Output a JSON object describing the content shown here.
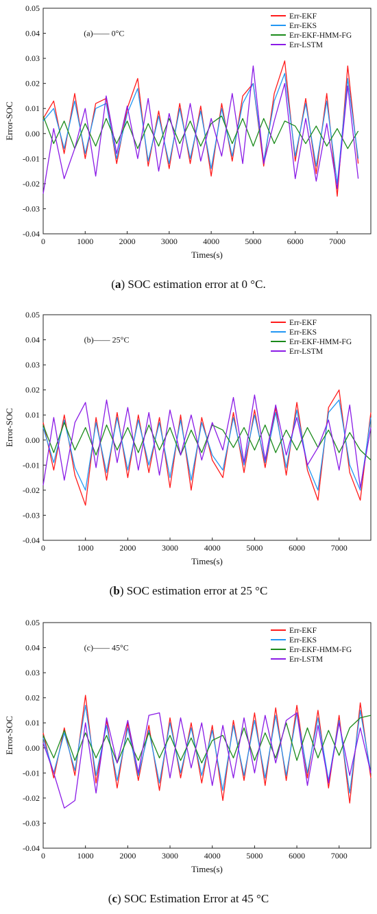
{
  "colors": {
    "Err-EKF": "#ff1a1a",
    "Err-EKS": "#2196f3",
    "Err-EKF-HMM-FG": "#1a8a1a",
    "Err-LSTM": "#8a1ae6"
  },
  "panels": [
    {
      "caption_letter": "a",
      "caption_rest": ") SOC estimation error at 0 °C.",
      "caption_open": "("
    },
    {
      "caption_letter": "b",
      "caption_rest": ") SOC estimation error at 25 °C",
      "caption_open": "("
    },
    {
      "caption_letter": "c",
      "caption_rest": ") SOC Estimation Error at 45 °C",
      "caption_open": "("
    }
  ],
  "chart_data": [
    {
      "type": "line",
      "annotation": "(a)—— 0°C",
      "xlabel": "Times(s)",
      "ylabel": "Error-SOC",
      "xlim": [
        0,
        7800
      ],
      "ylim": [
        -0.04,
        0.05
      ],
      "xticks": [
        0,
        1000,
        2000,
        3000,
        4000,
        5000,
        6000,
        7000
      ],
      "yticks": [
        "-0.04",
        "-0.03",
        "-0.02",
        "-0.01",
        "0.00",
        "0.01",
        "0.02",
        "0.03",
        "0.04",
        "0.05"
      ],
      "legend": "top-right",
      "series": [
        {
          "name": "Err-EKF",
          "x": [
            0,
            250,
            500,
            750,
            1000,
            1250,
            1500,
            1750,
            2000,
            2250,
            2500,
            2750,
            3000,
            3250,
            3500,
            3750,
            4000,
            4250,
            4500,
            4750,
            5000,
            5250,
            5500,
            5750,
            6000,
            6250,
            6500,
            6750,
            7000,
            7250,
            7500
          ],
          "values": [
            0.006,
            0.013,
            -0.008,
            0.016,
            -0.01,
            0.012,
            0.014,
            -0.012,
            0.01,
            0.022,
            -0.013,
            0.009,
            -0.014,
            0.012,
            -0.012,
            0.011,
            -0.017,
            0.012,
            -0.011,
            0.015,
            0.02,
            -0.013,
            0.016,
            0.029,
            -0.011,
            0.014,
            -0.016,
            0.016,
            -0.025,
            0.027,
            -0.012
          ]
        },
        {
          "name": "Err-EKS",
          "x": [
            0,
            250,
            500,
            750,
            1000,
            1250,
            1500,
            1750,
            2000,
            2250,
            2500,
            2750,
            3000,
            3250,
            3500,
            3750,
            4000,
            4250,
            4500,
            4750,
            5000,
            5250,
            5500,
            5750,
            6000,
            6250,
            6500,
            6750,
            7000,
            7250,
            7500
          ],
          "values": [
            0.005,
            0.01,
            -0.006,
            0.013,
            -0.008,
            0.01,
            0.012,
            -0.01,
            0.008,
            0.018,
            -0.011,
            0.007,
            -0.012,
            0.01,
            -0.01,
            0.009,
            -0.014,
            0.01,
            -0.009,
            0.012,
            0.02,
            -0.011,
            0.013,
            0.024,
            -0.009,
            0.012,
            -0.013,
            0.013,
            -0.02,
            0.022,
            -0.01
          ]
        },
        {
          "name": "Err-EKF-HMM-FG",
          "x": [
            0,
            250,
            500,
            750,
            1000,
            1250,
            1500,
            1750,
            2000,
            2250,
            2500,
            2750,
            3000,
            3250,
            3500,
            3750,
            4000,
            4250,
            4500,
            4750,
            5000,
            5250,
            5500,
            5750,
            6000,
            6250,
            6500,
            6750,
            7000,
            7250,
            7500
          ],
          "values": [
            0.007,
            -0.004,
            0.005,
            -0.006,
            0.004,
            -0.005,
            0.006,
            -0.004,
            0.005,
            -0.006,
            0.004,
            -0.005,
            0.006,
            -0.004,
            0.005,
            -0.005,
            0.004,
            0.007,
            -0.004,
            0.006,
            -0.005,
            0.006,
            -0.004,
            0.005,
            0.003,
            -0.004,
            0.003,
            -0.005,
            0.002,
            -0.006,
            0.001
          ]
        },
        {
          "name": "Err-LSTM",
          "x": [
            0,
            250,
            500,
            750,
            1000,
            1250,
            1500,
            1750,
            2000,
            2250,
            2500,
            2750,
            3000,
            3250,
            3500,
            3750,
            4000,
            4250,
            4500,
            4750,
            5000,
            5250,
            5500,
            5750,
            6000,
            6250,
            6500,
            6750,
            7000,
            7250,
            7500
          ],
          "values": [
            -0.024,
            0.002,
            -0.018,
            -0.006,
            0.01,
            -0.017,
            0.015,
            -0.008,
            0.011,
            -0.01,
            0.014,
            -0.015,
            0.008,
            -0.01,
            0.012,
            -0.011,
            0.006,
            -0.009,
            0.016,
            -0.012,
            0.027,
            -0.012,
            0.005,
            0.02,
            -0.018,
            0.006,
            -0.019,
            0.004,
            -0.022,
            0.019,
            -0.018
          ]
        }
      ]
    },
    {
      "type": "line",
      "annotation": "(b)—— 25°C",
      "xlabel": "Times(s)",
      "ylabel": "Error-SOC",
      "xlim": [
        0,
        7800
      ],
      "ylim": [
        -0.04,
        0.05
      ],
      "xticks": [
        0,
        1000,
        2000,
        3000,
        4000,
        5000,
        6000,
        7000
      ],
      "yticks": [
        "-0.04",
        "-0.03",
        "-0.02",
        "-0.01",
        "0.00",
        "0.01",
        "0.02",
        "0.03",
        "0.04",
        "0.05"
      ],
      "legend": "top-right",
      "series": [
        {
          "name": "Err-EKF",
          "x": [
            0,
            250,
            500,
            750,
            1000,
            1250,
            1500,
            1750,
            2000,
            2250,
            2500,
            2750,
            3000,
            3250,
            3500,
            3750,
            4000,
            4250,
            4500,
            4750,
            5000,
            5250,
            5500,
            5750,
            6000,
            6250,
            6500,
            6750,
            7000,
            7250,
            7500,
            7750
          ],
          "values": [
            0.007,
            -0.012,
            0.01,
            -0.014,
            -0.026,
            0.009,
            -0.016,
            0.011,
            -0.015,
            0.01,
            -0.013,
            0.009,
            -0.019,
            0.01,
            -0.02,
            0.009,
            -0.008,
            -0.015,
            0.011,
            -0.013,
            0.012,
            -0.011,
            0.013,
            -0.014,
            0.015,
            -0.012,
            -0.024,
            0.013,
            0.02,
            -0.013,
            -0.024,
            0.011
          ]
        },
        {
          "name": "Err-EKS",
          "x": [
            0,
            250,
            500,
            750,
            1000,
            1250,
            1500,
            1750,
            2000,
            2250,
            2500,
            2750,
            3000,
            3250,
            3500,
            3750,
            4000,
            4250,
            4500,
            4750,
            5000,
            5250,
            5500,
            5750,
            6000,
            6250,
            6500,
            6750,
            7000,
            7250,
            7500,
            7750
          ],
          "values": [
            0.005,
            -0.009,
            0.008,
            -0.011,
            -0.02,
            0.007,
            -0.013,
            0.009,
            -0.012,
            0.008,
            -0.01,
            0.007,
            -0.015,
            0.008,
            -0.016,
            0.007,
            -0.006,
            -0.012,
            0.009,
            -0.01,
            0.01,
            -0.009,
            0.011,
            -0.011,
            0.012,
            -0.01,
            -0.02,
            0.011,
            0.016,
            -0.01,
            -0.02,
            0.009
          ]
        },
        {
          "name": "Err-EKF-HMM-FG",
          "x": [
            0,
            250,
            500,
            750,
            1000,
            1250,
            1500,
            1750,
            2000,
            2250,
            2500,
            2750,
            3000,
            3250,
            3500,
            3750,
            4000,
            4250,
            4500,
            4750,
            5000,
            5250,
            5500,
            5750,
            6000,
            6250,
            6500,
            6750,
            7000,
            7250,
            7500,
            7750
          ],
          "values": [
            0.006,
            -0.005,
            0.007,
            -0.004,
            0.005,
            -0.006,
            0.006,
            -0.004,
            0.005,
            -0.005,
            0.006,
            -0.004,
            0.005,
            -0.006,
            0.004,
            -0.005,
            0.006,
            0.004,
            -0.003,
            0.005,
            -0.004,
            0.006,
            -0.005,
            0.004,
            -0.004,
            0.005,
            -0.003,
            0.004,
            -0.005,
            0.003,
            -0.004,
            -0.008
          ]
        },
        {
          "name": "Err-LSTM",
          "x": [
            0,
            250,
            500,
            750,
            1000,
            1250,
            1500,
            1750,
            2000,
            2250,
            2500,
            2750,
            3000,
            3250,
            3500,
            3750,
            4000,
            4250,
            4500,
            4750,
            5000,
            5250,
            5500,
            5750,
            6000,
            6250,
            6500,
            6750,
            7000,
            7250,
            7500,
            7750
          ],
          "values": [
            -0.018,
            0.009,
            -0.016,
            0.007,
            0.015,
            -0.011,
            0.016,
            -0.009,
            0.013,
            -0.012,
            0.011,
            -0.014,
            0.012,
            -0.006,
            0.01,
            -0.008,
            0.007,
            -0.004,
            0.017,
            -0.009,
            0.018,
            -0.008,
            0.014,
            -0.006,
            0.009,
            -0.01,
            -0.003,
            0.008,
            -0.012,
            0.014,
            -0.019,
            0.005
          ]
        }
      ]
    },
    {
      "type": "line",
      "annotation": "(c)—— 45°C",
      "xlabel": "Times(s)",
      "ylabel": "Error-SOC",
      "xlim": [
        0,
        7800
      ],
      "ylim": [
        -0.04,
        0.05
      ],
      "xticks": [
        0,
        1000,
        2000,
        3000,
        4000,
        5000,
        6000,
        7000
      ],
      "yticks": [
        "-0.04",
        "-0.03",
        "-0.02",
        "-0.01",
        "0.00",
        "0.01",
        "0.02",
        "0.03",
        "0.04",
        "0.05"
      ],
      "legend": "top-right",
      "series": [
        {
          "name": "Err-EKF",
          "x": [
            0,
            250,
            500,
            750,
            1000,
            1250,
            1500,
            1750,
            2000,
            2250,
            2500,
            2750,
            3000,
            3250,
            3500,
            3750,
            4000,
            4250,
            4500,
            4750,
            5000,
            5250,
            5500,
            5750,
            6000,
            6250,
            6500,
            6750,
            7000,
            7250,
            7500,
            7750
          ],
          "values": [
            0.006,
            -0.012,
            0.008,
            -0.011,
            0.021,
            -0.014,
            0.011,
            -0.016,
            0.01,
            -0.013,
            0.009,
            -0.017,
            0.012,
            -0.012,
            0.01,
            -0.014,
            0.009,
            -0.021,
            0.011,
            -0.013,
            0.014,
            -0.015,
            0.016,
            -0.013,
            0.017,
            -0.012,
            0.015,
            -0.016,
            0.013,
            -0.022,
            0.018,
            -0.012
          ]
        },
        {
          "name": "Err-EKS",
          "x": [
            0,
            250,
            500,
            750,
            1000,
            1250,
            1500,
            1750,
            2000,
            2250,
            2500,
            2750,
            3000,
            3250,
            3500,
            3750,
            4000,
            4250,
            4500,
            4750,
            5000,
            5250,
            5500,
            5750,
            6000,
            6250,
            6500,
            6750,
            7000,
            7250,
            7500,
            7750
          ],
          "values": [
            0.004,
            -0.01,
            0.006,
            -0.009,
            0.017,
            -0.011,
            0.009,
            -0.013,
            0.008,
            -0.011,
            0.007,
            -0.014,
            0.01,
            -0.01,
            0.008,
            -0.011,
            0.007,
            -0.017,
            0.009,
            -0.011,
            0.011,
            -0.012,
            0.013,
            -0.011,
            0.014,
            -0.01,
            0.012,
            -0.013,
            0.011,
            -0.018,
            0.015,
            -0.01
          ]
        },
        {
          "name": "Err-EKF-HMM-FG",
          "x": [
            0,
            250,
            500,
            750,
            1000,
            1250,
            1500,
            1750,
            2000,
            2250,
            2500,
            2750,
            3000,
            3250,
            3500,
            3750,
            4000,
            4250,
            4500,
            4750,
            5000,
            5250,
            5500,
            5750,
            6000,
            6250,
            6500,
            6750,
            7000,
            7250,
            7500,
            7750
          ],
          "values": [
            0.005,
            -0.004,
            0.007,
            -0.005,
            0.006,
            -0.004,
            0.005,
            -0.006,
            0.004,
            -0.005,
            0.006,
            -0.004,
            0.005,
            -0.005,
            0.004,
            -0.006,
            0.003,
            0.005,
            -0.004,
            0.008,
            -0.005,
            0.006,
            -0.004,
            0.01,
            -0.005,
            0.008,
            -0.004,
            0.007,
            -0.003,
            0.008,
            0.012,
            0.013
          ]
        },
        {
          "name": "Err-LSTM",
          "x": [
            0,
            250,
            500,
            750,
            1000,
            1250,
            1500,
            1750,
            2000,
            2250,
            2500,
            2750,
            3000,
            3250,
            3500,
            3750,
            4000,
            4250,
            4500,
            4750,
            5000,
            5250,
            5500,
            5750,
            6000,
            6250,
            6500,
            6750,
            7000,
            7250,
            7500,
            7750
          ],
          "values": [
            0.002,
            -0.01,
            -0.024,
            -0.021,
            0.01,
            -0.018,
            0.012,
            -0.006,
            0.011,
            -0.01,
            0.013,
            0.014,
            -0.012,
            0.012,
            -0.008,
            0.01,
            -0.015,
            0.009,
            -0.012,
            0.012,
            -0.01,
            0.013,
            -0.006,
            0.011,
            0.014,
            -0.015,
            0.009,
            -0.014,
            0.01,
            -0.011,
            0.008,
            -0.01
          ]
        }
      ]
    }
  ]
}
